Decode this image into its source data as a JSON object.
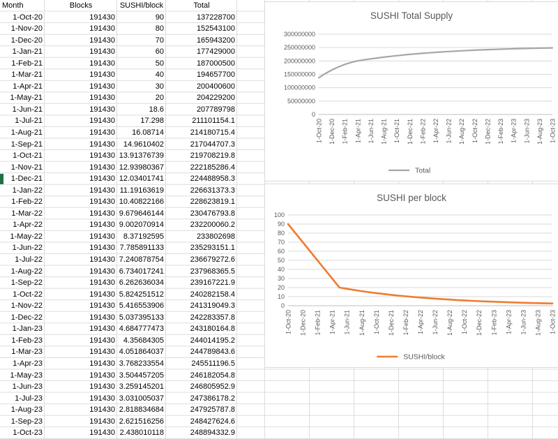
{
  "table": {
    "headers": {
      "month": "Month",
      "blocks": "Blocks",
      "sushi_per_block": "SUSHI/block",
      "total": "Total"
    },
    "rows": [
      [
        "1-Oct-20",
        "191430",
        "90",
        "137228700"
      ],
      [
        "1-Nov-20",
        "191430",
        "80",
        "152543100"
      ],
      [
        "1-Dec-20",
        "191430",
        "70",
        "165943200"
      ],
      [
        "1-Jan-21",
        "191430",
        "60",
        "177429000"
      ],
      [
        "1-Feb-21",
        "191430",
        "50",
        "187000500"
      ],
      [
        "1-Mar-21",
        "191430",
        "40",
        "194657700"
      ],
      [
        "1-Apr-21",
        "191430",
        "30",
        "200400600"
      ],
      [
        "1-May-21",
        "191430",
        "20",
        "204229200"
      ],
      [
        "1-Jun-21",
        "191430",
        "18.6",
        "207789798"
      ],
      [
        "1-Jul-21",
        "191430",
        "17.298",
        "211101154.1"
      ],
      [
        "1-Aug-21",
        "191430",
        "16.08714",
        "214180715.4"
      ],
      [
        "1-Sep-21",
        "191430",
        "14.9610402",
        "217044707.3"
      ],
      [
        "1-Oct-21",
        "191430",
        "13.91376739",
        "219708219.8"
      ],
      [
        "1-Nov-21",
        "191430",
        "12.93980367",
        "222185286.4"
      ],
      [
        "1-Dec-21",
        "191430",
        "12.03401741",
        "224488958.3"
      ],
      [
        "1-Jan-22",
        "191430",
        "11.19163619",
        "226631373.3"
      ],
      [
        "1-Feb-22",
        "191430",
        "10.40822166",
        "228623819.1"
      ],
      [
        "1-Mar-22",
        "191430",
        "9.679646144",
        "230476793.8"
      ],
      [
        "1-Apr-22",
        "191430",
        "9.002070914",
        "232200060.2"
      ],
      [
        "1-May-22",
        "191430",
        "8.37192595",
        "233802698"
      ],
      [
        "1-Jun-22",
        "191430",
        "7.785891133",
        "235293151.1"
      ],
      [
        "1-Jul-22",
        "191430",
        "7.240878754",
        "236679272.6"
      ],
      [
        "1-Aug-22",
        "191430",
        "6.734017241",
        "237968365.5"
      ],
      [
        "1-Sep-22",
        "191430",
        "6.262636034",
        "239167221.9"
      ],
      [
        "1-Oct-22",
        "191430",
        "5.824251512",
        "240282158.4"
      ],
      [
        "1-Nov-22",
        "191430",
        "5.416553906",
        "241319049.3"
      ],
      [
        "1-Dec-22",
        "191430",
        "5.037395133",
        "242283357.8"
      ],
      [
        "1-Jan-23",
        "191430",
        "4.684777473",
        "243180164.8"
      ],
      [
        "1-Feb-23",
        "191430",
        "4.35684305",
        "244014195.2"
      ],
      [
        "1-Mar-23",
        "191430",
        "4.051864037",
        "244789843.6"
      ],
      [
        "1-Apr-23",
        "191430",
        "3.768233554",
        "245511196.5"
      ],
      [
        "1-May-23",
        "191430",
        "3.504457205",
        "246182054.8"
      ],
      [
        "1-Jun-23",
        "191430",
        "3.259145201",
        "246805952.9"
      ],
      [
        "1-Jul-23",
        "191430",
        "3.031005037",
        "247386178.2"
      ],
      [
        "1-Aug-23",
        "191430",
        "2.818834684",
        "247925787.8"
      ],
      [
        "1-Sep-23",
        "191430",
        "2.621516256",
        "248427624.6"
      ],
      [
        "1-Oct-23",
        "191430",
        "2.438010118",
        "248894332.9"
      ]
    ]
  },
  "chart_data": [
    {
      "type": "line",
      "title": "SUSHI Total Supply",
      "categories": [
        "1-Oct-20",
        "1-Nov-20",
        "1-Dec-20",
        "1-Jan-21",
        "1-Feb-21",
        "1-Mar-21",
        "1-Apr-21",
        "1-May-21",
        "1-Jun-21",
        "1-Jul-21",
        "1-Aug-21",
        "1-Sep-21",
        "1-Oct-21",
        "1-Nov-21",
        "1-Dec-21",
        "1-Jan-22",
        "1-Feb-22",
        "1-Mar-22",
        "1-Apr-22",
        "1-May-22",
        "1-Jun-22",
        "1-Jul-22",
        "1-Aug-22",
        "1-Sep-22",
        "1-Oct-22",
        "1-Nov-22",
        "1-Dec-22",
        "1-Jan-23",
        "1-Feb-23",
        "1-Mar-23",
        "1-Apr-23",
        "1-May-23",
        "1-Jun-23",
        "1-Jul-23",
        "1-Aug-23",
        "1-Sep-23",
        "1-Oct-23"
      ],
      "x_tick_labels_every": 2,
      "series": [
        {
          "name": "Total",
          "color": "#a6a6a6",
          "values": [
            137228700,
            152543100,
            165943200,
            177429000,
            187000500,
            194657700,
            200400600,
            204229200,
            207789798,
            211101154.1,
            214180715.4,
            217044707.3,
            219708219.8,
            222185286.4,
            224488958.3,
            226631373.3,
            228623819.1,
            230476793.8,
            232200060.2,
            233802698,
            235293151.1,
            236679272.6,
            237968365.5,
            239167221.9,
            240282158.4,
            241319049.3,
            242283357.8,
            243180164.8,
            244014195.2,
            244789843.6,
            245511196.5,
            246182054.8,
            246805952.9,
            247386178.2,
            247925787.8,
            248427624.6,
            248894332.9
          ]
        }
      ],
      "ylim": [
        0,
        300000000
      ],
      "y_tick_labels": [
        "0",
        "50000000",
        "100000000",
        "150000000",
        "200000000",
        "250000000",
        "300000000"
      ],
      "grid": true,
      "legend_position": "bottom"
    },
    {
      "type": "line",
      "title": "SUSHI per block",
      "categories": [
        "1-Oct-20",
        "1-Nov-20",
        "1-Dec-20",
        "1-Jan-21",
        "1-Feb-21",
        "1-Mar-21",
        "1-Apr-21",
        "1-May-21",
        "1-Jun-21",
        "1-Jul-21",
        "1-Aug-21",
        "1-Sep-21",
        "1-Oct-21",
        "1-Nov-21",
        "1-Dec-21",
        "1-Jan-22",
        "1-Feb-22",
        "1-Mar-22",
        "1-Apr-22",
        "1-May-22",
        "1-Jun-22",
        "1-Jul-22",
        "1-Aug-22",
        "1-Sep-22",
        "1-Oct-22",
        "1-Nov-22",
        "1-Dec-22",
        "1-Jan-23",
        "1-Feb-23",
        "1-Mar-23",
        "1-Apr-23",
        "1-May-23",
        "1-Jun-23",
        "1-Jul-23",
        "1-Aug-23",
        "1-Sep-23",
        "1-Oct-23"
      ],
      "x_tick_labels_every": 2,
      "series": [
        {
          "name": "SUSHI/block",
          "color": "#ed7d31",
          "values": [
            90,
            80,
            70,
            60,
            50,
            40,
            30,
            20,
            18.6,
            17.298,
            16.08714,
            14.9610402,
            13.91376739,
            12.93980367,
            12.03401741,
            11.19163619,
            10.40822166,
            9.679646144,
            9.002070914,
            8.37192595,
            7.785891133,
            7.240878754,
            6.734017241,
            6.262636034,
            5.824251512,
            5.416553906,
            5.037395133,
            4.684777473,
            4.35684305,
            4.051864037,
            3.768233554,
            3.504457205,
            3.259145201,
            3.031005037,
            2.818834684,
            2.621516256,
            2.438010118
          ]
        }
      ],
      "ylim": [
        0,
        100
      ],
      "y_tick_labels": [
        "0",
        "10",
        "20",
        "30",
        "40",
        "50",
        "60",
        "70",
        "80",
        "90",
        "100"
      ],
      "grid": true,
      "legend_position": "bottom"
    }
  ],
  "colors": {
    "gridline": "#dcdcdc",
    "chart_gridline": "#d9d9d9",
    "chart_border": "#d9d9d9",
    "axis_text": "#595959",
    "total_series": "#a6a6a6",
    "sushi_series": "#ed7d31",
    "selection_green": "#1e7145"
  }
}
